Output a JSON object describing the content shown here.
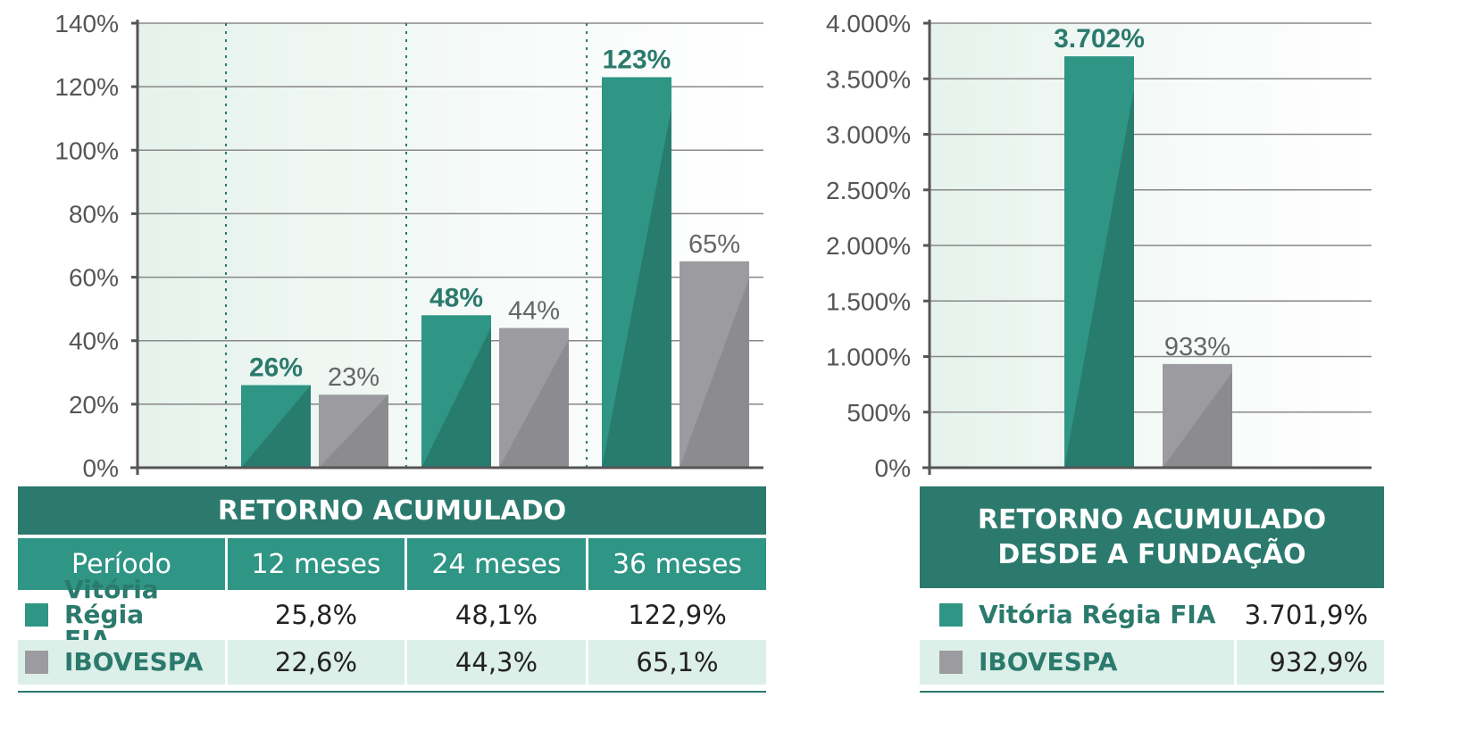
{
  "colors": {
    "fund": "#2f9585",
    "fund_dark": "#27796b",
    "index": "#9c9ca0",
    "index_dark": "#8a8a8e",
    "header_dark": "#2b7a6d",
    "header_mid": "#2f9585",
    "row_tint": "#dcefe8",
    "axis": "#555555",
    "grid": "#888888"
  },
  "chart_data": [
    {
      "type": "bar",
      "categories": [
        "12 meses",
        "24 meses",
        "36 meses"
      ],
      "series": [
        {
          "name": "Vitória Régia FIA",
          "values": [
            26,
            48,
            123
          ],
          "labels": [
            "26%",
            "48%",
            "123%"
          ]
        },
        {
          "name": "IBOVESPA",
          "values": [
            23,
            44,
            65
          ],
          "labels": [
            "23%",
            "44%",
            "65%"
          ]
        }
      ],
      "ylim": [
        0,
        140
      ],
      "yticks": [
        0,
        20,
        40,
        60,
        80,
        100,
        120,
        140
      ],
      "ytick_labels": [
        "0%",
        "20%",
        "40%",
        "60%",
        "80%",
        "100%",
        "120%",
        "140%"
      ],
      "grid": true
    },
    {
      "type": "bar",
      "categories": [
        "Desde a fundação"
      ],
      "series": [
        {
          "name": "Vitória Régia FIA",
          "values": [
            3702
          ],
          "labels": [
            "3.702%"
          ]
        },
        {
          "name": "IBOVESPA",
          "values": [
            933
          ],
          "labels": [
            "933%"
          ]
        }
      ],
      "ylim": [
        0,
        4000
      ],
      "yticks": [
        0,
        500,
        1000,
        1500,
        2000,
        2500,
        3000,
        3500,
        4000
      ],
      "ytick_labels": [
        "0%",
        "500%",
        "1.000%",
        "1.500%",
        "2.000%",
        "2.500%",
        "3.000%",
        "3.500%",
        "4.000%"
      ],
      "grid": true
    }
  ],
  "table_left": {
    "title": "RETORNO ACUMULADO",
    "header": [
      "Período",
      "12 meses",
      "24 meses",
      "36 meses"
    ],
    "rows": [
      {
        "label_line1": "Vitória Régia",
        "label_line2": "FIA",
        "values": [
          "25,8%",
          "48,1%",
          "122,9%"
        ]
      },
      {
        "label": "IBOVESPA",
        "values": [
          "22,6%",
          "44,3%",
          "65,1%"
        ]
      }
    ]
  },
  "table_right": {
    "title_line1": "RETORNO ACUMULADO",
    "title_line2": "DESDE A FUNDAÇÃO",
    "rows": [
      {
        "label": "Vitória Régia FIA",
        "value": "3.701,9%"
      },
      {
        "label": "IBOVESPA",
        "value": "932,9%"
      }
    ]
  }
}
